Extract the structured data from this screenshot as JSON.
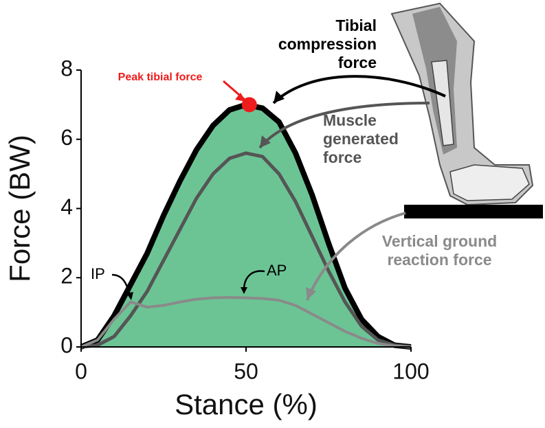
{
  "chart_data": {
    "type": "line",
    "x_label": "Stance (%)",
    "y_label": "Force (BW)",
    "xlim": [
      0,
      100
    ],
    "xticks": [
      0,
      50,
      100
    ],
    "ylim": [
      0,
      8
    ],
    "yticks": [
      0,
      2,
      4,
      6,
      8
    ],
    "x": [
      0,
      5,
      10,
      15,
      20,
      25,
      30,
      35,
      40,
      45,
      50,
      55,
      60,
      65,
      70,
      75,
      80,
      85,
      90,
      95,
      100
    ],
    "series": [
      {
        "name": "Tibial compression force",
        "color": "#000000",
        "fill": "#6cc495",
        "values": [
          0,
          0.2,
          0.9,
          1.8,
          2.7,
          3.8,
          4.8,
          5.7,
          6.4,
          6.85,
          7.0,
          6.9,
          6.5,
          5.6,
          4.4,
          3.0,
          1.7,
          0.8,
          0.3,
          0.05,
          0
        ]
      },
      {
        "name": "Muscle generated force",
        "color": "#555555",
        "values": [
          0,
          0.05,
          0.3,
          0.9,
          1.6,
          2.5,
          3.4,
          4.3,
          5.0,
          5.45,
          5.6,
          5.5,
          5.0,
          4.2,
          3.2,
          2.2,
          1.3,
          0.6,
          0.2,
          0.05,
          0
        ]
      },
      {
        "name": "Vertical ground reaction force",
        "color": "#8a8a8a",
        "values": [
          0,
          0.2,
          0.8,
          1.3,
          1.15,
          1.2,
          1.3,
          1.38,
          1.42,
          1.43,
          1.42,
          1.4,
          1.35,
          1.2,
          0.95,
          0.7,
          0.45,
          0.25,
          0.1,
          0.03,
          0
        ]
      }
    ],
    "peak": {
      "label": "Peak tibial force",
      "x": 51,
      "y": 7.0,
      "color": "#ee1c1c"
    },
    "annotations": [
      "IP",
      "AP"
    ]
  }
}
